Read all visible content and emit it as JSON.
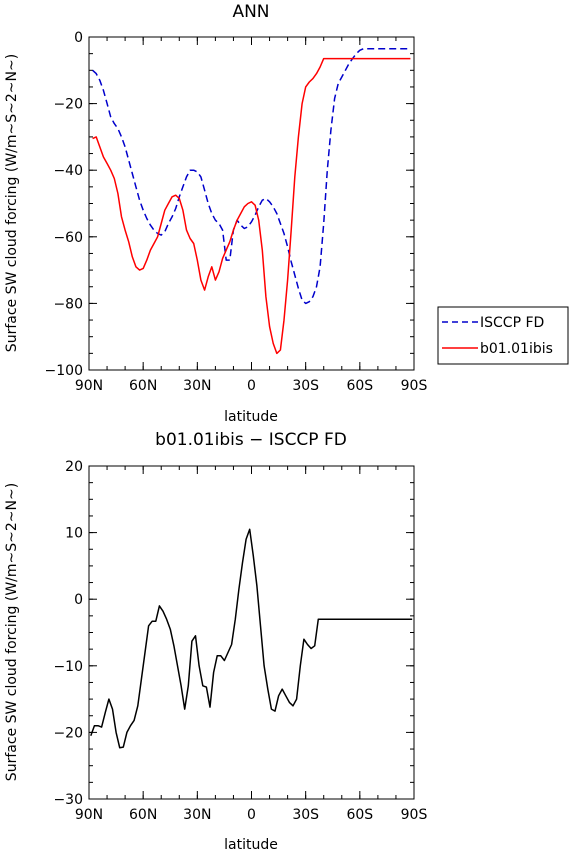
{
  "chart_data": [
    {
      "type": "line",
      "title": "ANN",
      "xlabel": "latitude",
      "ylabel": "Surface SW cloud forcing (W/m~S~2~N~)",
      "xlim": [
        -90,
        90
      ],
      "ylim": [
        -100,
        0
      ],
      "x_ticks": [
        -90,
        -60,
        -30,
        0,
        30,
        60,
        90
      ],
      "x_tick_labels": [
        "90N",
        "60N",
        "30N",
        "0",
        "30S",
        "60S",
        "90S"
      ],
      "y_ticks": [
        -100,
        -80,
        -60,
        -40,
        -20,
        0
      ],
      "y_tick_labels": [
        "−100",
        "−80",
        "−60",
        "−40",
        "−20",
        "0"
      ],
      "grid": false,
      "legend_position": "right-bottom outside",
      "series": [
        {
          "name": "ISCCP FD",
          "color": "#0000cc",
          "style": "dashed",
          "x": [
            -88,
            -86,
            -84,
            -82,
            -80,
            -78,
            -76,
            -74,
            -72,
            -70,
            -68,
            -66,
            -64,
            -62,
            -60,
            -58,
            -56,
            -54,
            -52,
            -50,
            -48,
            -46,
            -44,
            -42,
            -40,
            -38,
            -36,
            -34,
            -32,
            -30,
            -28,
            -26,
            -24,
            -22,
            -20,
            -18,
            -16,
            -14,
            -12,
            -10,
            -8,
            -6,
            -4,
            -2,
            0,
            2,
            4,
            6,
            8,
            10,
            12,
            14,
            16,
            18,
            20,
            22,
            24,
            26,
            28,
            30,
            32,
            34,
            36,
            38,
            40,
            42,
            44,
            46,
            48,
            50,
            52,
            54,
            56,
            58,
            60,
            62,
            64,
            66,
            68,
            70,
            72,
            74,
            76,
            78,
            80,
            82,
            84,
            86,
            88
          ],
          "y": [
            -10,
            -11,
            -13,
            -16,
            -20,
            -24,
            -26,
            -27.5,
            -30,
            -33,
            -37,
            -41,
            -45,
            -49,
            -52,
            -54.5,
            -56.5,
            -58,
            -59,
            -59.5,
            -58.5,
            -56,
            -54,
            -51.5,
            -48,
            -45,
            -42,
            -40,
            -40,
            -40.5,
            -42,
            -46,
            -50,
            -53,
            -55,
            -56,
            -58,
            -67,
            -67,
            -58,
            -55,
            -56.5,
            -57.5,
            -57,
            -55.5,
            -53.5,
            -51,
            -49,
            -48.5,
            -49.5,
            -51,
            -53,
            -56,
            -59,
            -63,
            -67.5,
            -71.5,
            -75.5,
            -79,
            -80,
            -79.5,
            -78,
            -75,
            -69,
            -56,
            -40,
            -28,
            -18.5,
            -14,
            -12,
            -10,
            -8,
            -6.5,
            -5,
            -4,
            -3.5,
            -3.5,
            -3.5,
            -3.5,
            -3.5,
            -3.5,
            -3.5,
            -3.5,
            -3.5,
            -3.5,
            -3.5,
            -3.5,
            -3.5,
            -3.5
          ]
        },
        {
          "name": "b01.01ibis",
          "color": "#ff0000",
          "style": "solid",
          "x": [
            -88,
            -86,
            -84,
            -82,
            -80,
            -78,
            -76,
            -74,
            -72,
            -70,
            -68,
            -66,
            -64,
            -62,
            -60,
            -58,
            -56,
            -54,
            -52,
            -50,
            -48,
            -46,
            -44,
            -42,
            -40,
            -38,
            -36,
            -34,
            -32,
            -30,
            -28,
            -26,
            -24,
            -22,
            -20,
            -18,
            -16,
            -14,
            -12,
            -10,
            -8,
            -6,
            -4,
            -2,
            0,
            2,
            4,
            6,
            8,
            10,
            12,
            14,
            16,
            18,
            20,
            22,
            24,
            26,
            28,
            30,
            32,
            34,
            36,
            38,
            40,
            42,
            44,
            46,
            48,
            50,
            52,
            54,
            56,
            58,
            60,
            62,
            64,
            66,
            68,
            70,
            72,
            74,
            76,
            78,
            80,
            82,
            84,
            86,
            88
          ],
          "y": [
            -30.5,
            -30,
            -33,
            -36,
            -38,
            -40,
            -42.5,
            -47,
            -54,
            -58,
            -61.5,
            -66,
            -69,
            -70,
            -69.5,
            -67,
            -64,
            -62,
            -60,
            -56,
            -52,
            -50,
            -48,
            -47.5,
            -48.5,
            -52,
            -58,
            -60.5,
            -62,
            -67,
            -73,
            -76,
            -72,
            -69,
            -73,
            -70.5,
            -66.5,
            -64,
            -61.5,
            -58,
            -55,
            -53,
            -51,
            -50,
            -49.5,
            -50.5,
            -55,
            -64,
            -78,
            -87,
            -92,
            -95,
            -94,
            -85,
            -73,
            -58,
            -42,
            -30,
            -20,
            -15,
            -13.5,
            -12.5,
            -11,
            -9,
            -6.5,
            -6.5,
            -6.5,
            -6.5,
            -6.5,
            -6.5,
            -6.5,
            -6.5,
            -6.5,
            -6.5,
            -6.5,
            -6.5,
            -6.5,
            -6.5,
            -6.5,
            -6.5,
            -6.5,
            -6.5,
            -6.5,
            -6.5,
            -6.5,
            -6.5,
            -6.5,
            -6.5,
            -6.5
          ]
        }
      ]
    },
    {
      "type": "line",
      "title": "b01.01ibis − ISCCP FD",
      "xlabel": "latitude",
      "ylabel": "Surface SW cloud forcing (W/m~S~2~N~)",
      "xlim": [
        -90,
        90
      ],
      "ylim": [
        -30,
        20
      ],
      "x_ticks": [
        -90,
        -60,
        -30,
        0,
        30,
        60,
        90
      ],
      "x_tick_labels": [
        "90N",
        "60N",
        "30N",
        "0",
        "30S",
        "60S",
        "90S"
      ],
      "y_ticks": [
        -30,
        -20,
        -10,
        0,
        10,
        20
      ],
      "y_tick_labels": [
        "−30",
        "−20",
        "−10",
        "0",
        "10",
        "20"
      ],
      "grid": false,
      "series": [
        {
          "color": "#000000",
          "style": "solid",
          "x": [
            -89,
            -87,
            -85,
            -83,
            -81,
            -79,
            -77,
            -75,
            -73,
            -71,
            -69,
            -67,
            -65,
            -63,
            -61,
            -59,
            -57,
            -55,
            -53,
            -51,
            -49,
            -47,
            -45,
            -43,
            -41,
            -39,
            -37,
            -35,
            -33,
            -31,
            -29,
            -27,
            -25,
            -23,
            -21,
            -19,
            -17,
            -15,
            -13,
            -11,
            -9,
            -7,
            -5,
            -3,
            -1,
            1,
            3,
            5,
            7,
            9,
            11,
            13,
            15,
            17,
            19,
            21,
            23,
            25,
            27,
            29,
            31,
            33,
            35,
            37,
            39,
            41,
            43,
            45,
            47,
            49,
            51,
            53,
            55,
            57,
            59,
            61,
            63,
            65,
            67,
            69,
            71,
            73,
            75,
            77,
            79,
            81,
            83,
            85,
            87,
            89
          ],
          "y": [
            -20.5,
            -19,
            -19,
            -19.2,
            -17,
            -15,
            -16.5,
            -20,
            -22.3,
            -22.2,
            -20,
            -19,
            -18.2,
            -16,
            -12,
            -8,
            -4,
            -3.3,
            -3.3,
            -1,
            -1.8,
            -3,
            -4.5,
            -7,
            -10,
            -13,
            -16.5,
            -13,
            -6.3,
            -5.5,
            -10,
            -13,
            -13.2,
            -16.2,
            -11,
            -8.5,
            -8.5,
            -9.2,
            -8,
            -6.8,
            -3,
            1.5,
            5.5,
            9,
            10.5,
            6.5,
            2,
            -4,
            -10,
            -13.5,
            -16.5,
            -16.8,
            -14.5,
            -13.5,
            -14.5,
            -15.5,
            -16,
            -15,
            -10,
            -6,
            -6.8,
            -7.4,
            -7,
            -3,
            -3,
            -3,
            -3,
            -3,
            -3,
            -3,
            -3,
            -3,
            -3,
            -3,
            -3,
            -3,
            -3,
            -3,
            -3,
            -3,
            -3,
            -3,
            -3,
            -3,
            -3,
            -3,
            -3,
            -3,
            -3,
            -3
          ]
        }
      ]
    }
  ]
}
